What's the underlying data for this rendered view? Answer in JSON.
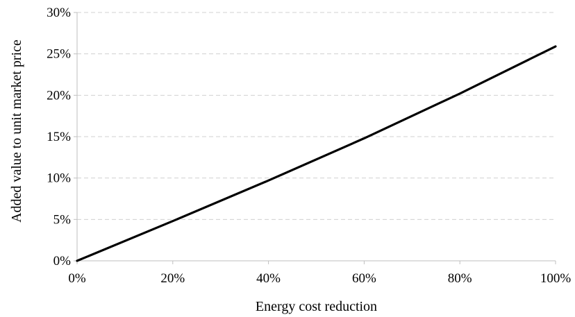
{
  "chart_data": {
    "type": "line",
    "title": "",
    "xlabel": "Energy cost reduction",
    "ylabel": "Added value to unit market price",
    "x_ticks": [
      "0%",
      "20%",
      "40%",
      "60%",
      "80%",
      "100%"
    ],
    "y_ticks": [
      "0%",
      "5%",
      "10%",
      "15%",
      "20%",
      "25%",
      "30%"
    ],
    "xlim": [
      0,
      100
    ],
    "ylim": [
      0,
      30
    ],
    "grid": "horizontal dashed",
    "legend": "none",
    "series": [
      {
        "x": [
          0,
          20,
          40,
          60,
          80,
          100
        ],
        "y": [
          0,
          4.8,
          9.7,
          14.8,
          20.2,
          25.9
        ],
        "color": "#000000"
      }
    ]
  }
}
